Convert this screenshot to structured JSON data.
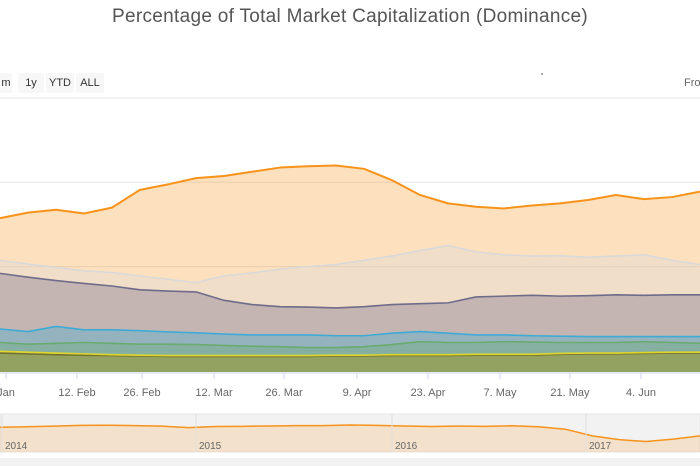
{
  "colors": {
    "orange": "#f7931a",
    "light_gray": "#d9d9d9",
    "purple_gray": "#6f6b8a",
    "blue": "#3eabd6",
    "green": "#6aab6e",
    "dark": "#3a3a3a",
    "yellow": "#e0d62a"
  },
  "range_selector": {
    "buttons": [
      "m",
      "1y",
      "YTD",
      "ALL"
    ],
    "from_label": "Fro"
  },
  "chart_data": {
    "type": "area",
    "title": "Percentage of Total Market Capitalization (Dominance)",
    "stacking": "percent",
    "grid": true,
    "x_tick_labels": [
      "Jan",
      "12. Feb",
      "26. Feb",
      "12. Mar",
      "26. Mar",
      "9. Apr",
      "23. Apr",
      "7. May",
      "21. May",
      "4. Jun"
    ],
    "series": [
      {
        "color": "orange",
        "values": [
          71.5,
          72.8,
          73.5,
          72.6,
          74.0,
          78.2,
          79.5,
          81.0,
          81.5,
          82.5,
          83.5,
          83.8,
          84.0,
          83.2,
          80.5,
          77.0,
          75.0,
          74.2,
          73.8,
          74.5,
          75.0,
          75.8,
          77.0,
          76.0,
          76.5,
          77.8
        ]
      },
      {
        "color": "light_gray",
        "values": [
          61.5,
          60.6,
          59.8,
          59.0,
          58.6,
          57.8,
          57.0,
          56.2,
          57.8,
          58.5,
          59.4,
          60.0,
          60.5,
          61.5,
          62.5,
          63.8,
          65.0,
          63.5,
          62.8,
          62.5,
          62.6,
          62.2,
          62.5,
          62.8,
          61.5,
          60.5
        ]
      },
      {
        "color": "purple_gray",
        "values": [
          58.4,
          57.5,
          56.7,
          56.0,
          55.4,
          54.5,
          54.2,
          54.0,
          52.0,
          51.0,
          50.5,
          50.4,
          50.2,
          50.5,
          51.0,
          51.2,
          51.4,
          52.8,
          53.0,
          53.2,
          53.0,
          53.1,
          53.3,
          53.2,
          53.3,
          53.3
        ]
      },
      {
        "color": "blue",
        "values": [
          45.2,
          44.6,
          45.8,
          45.0,
          45.0,
          44.8,
          44.5,
          44.3,
          44.0,
          43.8,
          43.8,
          43.8,
          43.6,
          43.6,
          44.2,
          44.6,
          44.2,
          43.8,
          43.8,
          43.6,
          43.5,
          43.4,
          43.4,
          43.4,
          43.4,
          43.4
        ]
      },
      {
        "color": "green",
        "values": [
          42.0,
          41.6,
          41.8,
          42.0,
          41.8,
          41.6,
          41.6,
          41.5,
          41.3,
          41.1,
          41.0,
          40.8,
          40.8,
          41.0,
          41.5,
          42.2,
          42.0,
          42.0,
          42.2,
          42.1,
          42.0,
          42.0,
          42.0,
          42.2,
          42.0,
          41.8
        ]
      },
      {
        "color": "dark",
        "values": [
          39.5,
          39.3,
          39.1,
          39.0,
          38.9,
          38.8,
          38.7,
          38.7,
          38.7,
          38.7,
          38.7,
          38.7,
          38.8,
          38.8,
          38.9,
          38.9,
          38.9,
          39.0,
          39.0,
          39.0,
          39.2,
          39.3,
          39.3,
          39.4,
          39.5,
          39.5
        ]
      },
      {
        "color": "yellow",
        "values": [
          39.9,
          39.7,
          39.5,
          39.3,
          39.1,
          39.0,
          38.9,
          38.9,
          38.9,
          38.9,
          38.9,
          38.9,
          39.0,
          39.0,
          39.1,
          39.1,
          39.1,
          39.2,
          39.2,
          39.2,
          39.4,
          39.5,
          39.5,
          39.6,
          39.7,
          39.7
        ]
      }
    ],
    "navigator": {
      "x_tick_labels": [
        "2014",
        "2015",
        "2016",
        "2017"
      ],
      "values": [
        88.0,
        88.3,
        88.6,
        89.0,
        89.1,
        88.9,
        88.6,
        87.8,
        88.4,
        88.5,
        88.7,
        88.9,
        88.9,
        89.2,
        89.0,
        88.7,
        88.4,
        88.6,
        88.5,
        88.8,
        88.3,
        87.0,
        83.5,
        81.5,
        80.5,
        81.8,
        83.5
      ]
    }
  }
}
